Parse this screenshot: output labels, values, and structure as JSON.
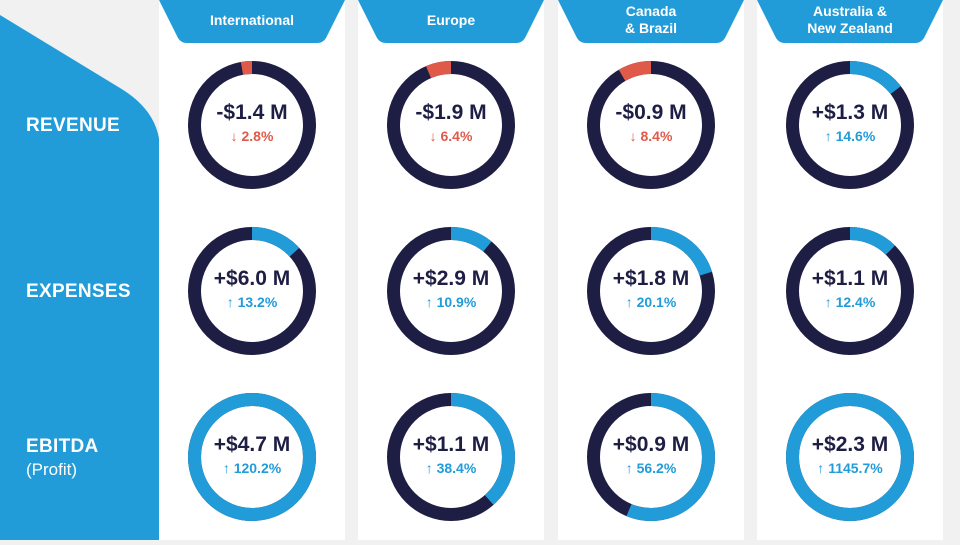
{
  "colors": {
    "blue": "#229cd8",
    "navy": "#1e1e45",
    "red": "#e05a4a",
    "bg": "#f1f1f1"
  },
  "rows": [
    {
      "label": "REVENUE",
      "sub": null
    },
    {
      "label": "EXPENSES",
      "sub": null
    },
    {
      "label": "EBITDA",
      "sub": "(Profit)"
    }
  ],
  "regions": [
    {
      "name": "International",
      "cells": [
        {
          "value": "-$1.4 M",
          "change": "2.8%",
          "direction": "down",
          "percent": 2.8
        },
        {
          "value": "+$6.0 M",
          "change": "13.2%",
          "direction": "up",
          "percent": 13.2
        },
        {
          "value": "+$4.7 M",
          "change": "120.2%",
          "direction": "up",
          "percent": 120.2
        }
      ]
    },
    {
      "name": "Europe",
      "cells": [
        {
          "value": "-$1.9 M",
          "change": "6.4%",
          "direction": "down",
          "percent": 6.4
        },
        {
          "value": "+$2.9 M",
          "change": "10.9%",
          "direction": "up",
          "percent": 10.9
        },
        {
          "value": "+$1.1 M",
          "change": "38.4%",
          "direction": "up",
          "percent": 38.4
        }
      ]
    },
    {
      "name": "Canada\n& Brazil",
      "cells": [
        {
          "value": "-$0.9 M",
          "change": "8.4%",
          "direction": "down",
          "percent": 8.4
        },
        {
          "value": "+$1.8 M",
          "change": "20.1%",
          "direction": "up",
          "percent": 20.1
        },
        {
          "value": "+$0.9 M",
          "change": "56.2%",
          "direction": "up",
          "percent": 56.2
        }
      ]
    },
    {
      "name": "Australia &\nNew Zealand",
      "cells": [
        {
          "value": "+$1.3 M",
          "change": "14.6%",
          "direction": "up",
          "percent": 14.6
        },
        {
          "value": "+$1.1 M",
          "change": "12.4%",
          "direction": "up",
          "percent": 12.4
        },
        {
          "value": "+$2.3 M",
          "change": "1145.7%",
          "direction": "up",
          "percent": 1145.7
        }
      ]
    }
  ]
}
